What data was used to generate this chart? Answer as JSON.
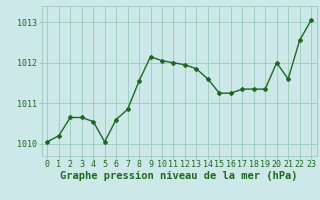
{
  "x": [
    0,
    1,
    2,
    3,
    4,
    5,
    6,
    7,
    8,
    9,
    10,
    11,
    12,
    13,
    14,
    15,
    16,
    17,
    18,
    19,
    20,
    21,
    22,
    23
  ],
  "y": [
    1010.05,
    1010.2,
    1010.65,
    1010.65,
    1010.55,
    1010.05,
    1010.6,
    1010.85,
    1011.55,
    1012.15,
    1012.05,
    1012.0,
    1011.95,
    1011.85,
    1011.6,
    1011.25,
    1011.25,
    1011.35,
    1011.35,
    1011.35,
    1012.0,
    1011.6,
    1012.55,
    1013.05
  ],
  "line_color": "#1a6b1a",
  "marker": "D",
  "marker_size": 2.0,
  "bg_color": "#cce8e8",
  "grid_color": "#99ccbb",
  "xlabel": "Graphe pression niveau de la mer (hPa)",
  "xlabel_color": "#1a6b1a",
  "tick_color": "#1a6b1a",
  "ylim": [
    1009.7,
    1013.4
  ],
  "xlim": [
    -0.5,
    23.5
  ],
  "yticks": [
    1010,
    1011,
    1012,
    1013
  ],
  "xticks": [
    0,
    1,
    2,
    3,
    4,
    5,
    6,
    7,
    8,
    9,
    10,
    11,
    12,
    13,
    14,
    15,
    16,
    17,
    18,
    19,
    20,
    21,
    22,
    23
  ],
  "tick_fontsize": 6,
  "xlabel_fontsize": 7.5,
  "linewidth": 1.0
}
